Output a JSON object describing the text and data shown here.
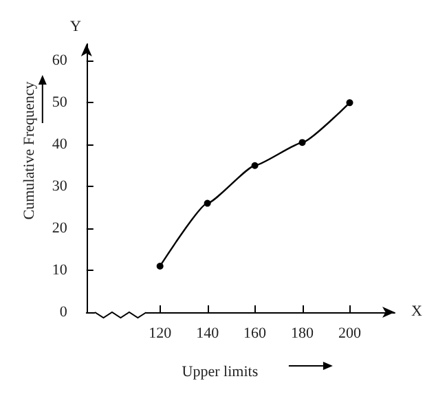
{
  "chart_data": {
    "type": "line",
    "xlabel": "Upper limits",
    "ylabel": "Cumulative Frequency",
    "x": [
      120,
      140,
      160,
      180,
      200
    ],
    "series": [
      {
        "color": "#000000",
        "values": [
          11,
          26,
          35,
          40.5,
          50
        ]
      }
    ],
    "xlim": [
      89,
      219
    ],
    "xticks": [
      120,
      140,
      160,
      180,
      200
    ],
    "ylim": [
      0,
      64
    ],
    "yticks": [
      0,
      10,
      20,
      30,
      40,
      50,
      60
    ],
    "grid": false,
    "marker": "circle",
    "line_style": "solid",
    "annotations": [
      "Y",
      "X"
    ]
  }
}
